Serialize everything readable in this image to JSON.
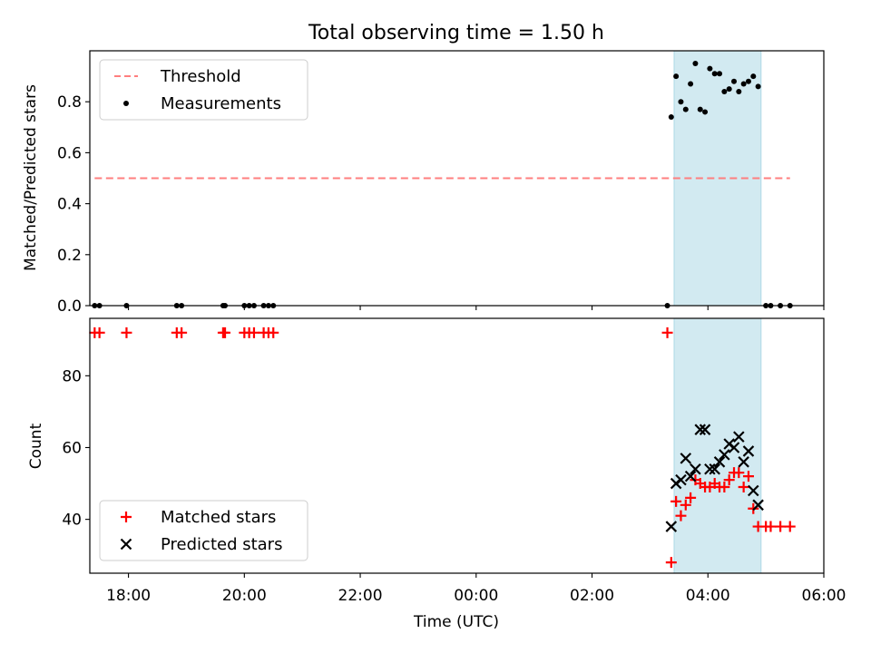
{
  "chart_data": [
    {
      "type": "scatter",
      "title": "Total observing time = 1.50 h",
      "ylabel": "Matched/Predicted stars",
      "ylim": [
        0,
        1.0
      ],
      "yticks": [
        "0.0",
        "0.2",
        "0.4",
        "0.6",
        "0.8"
      ],
      "xlim": [
        "17:20",
        "06:00"
      ],
      "shaded_interval": [
        "03:25",
        "04:55"
      ],
      "shade_color": "#add8e6",
      "legend": {
        "placement": "upper-left",
        "entries": [
          {
            "label": "Threshold",
            "marker": "dashed-line",
            "color": "#ff7f7f"
          },
          {
            "label": "Measurements",
            "marker": "dot",
            "color": "#000000"
          }
        ]
      },
      "series": [
        {
          "name": "Threshold",
          "style": "dashed-line",
          "color": "#ff7f7f",
          "x": [
            "17:25",
            "05:25"
          ],
          "y": [
            0.5,
            0.5
          ]
        },
        {
          "name": "Measurements",
          "style": "dot",
          "color": "#000000",
          "x": [
            "17:25",
            "17:30",
            "17:58",
            "18:50",
            "18:55",
            "19:38",
            "19:40",
            "20:00",
            "20:05",
            "20:10",
            "20:20",
            "20:25",
            "20:30",
            "03:18",
            "03:22",
            "03:27",
            "03:32",
            "03:37",
            "03:42",
            "03:47",
            "03:52",
            "03:57",
            "04:02",
            "04:07",
            "04:12",
            "04:17",
            "04:22",
            "04:27",
            "04:32",
            "04:37",
            "04:42",
            "04:47",
            "04:52",
            "05:00",
            "05:05",
            "05:15",
            "05:25"
          ],
          "y": [
            0,
            0,
            0,
            0,
            0,
            0,
            0,
            0,
            0,
            0,
            0,
            0,
            0,
            0,
            0.74,
            0.9,
            0.8,
            0.77,
            0.87,
            0.95,
            0.77,
            0.76,
            0.93,
            0.91,
            0.91,
            0.84,
            0.85,
            0.88,
            0.84,
            0.87,
            0.88,
            0.9,
            0.86,
            0,
            0,
            0,
            0
          ]
        }
      ]
    },
    {
      "type": "scatter",
      "title": "",
      "xlabel": "Time (UTC)",
      "ylabel": "Count",
      "ylim": [
        25,
        96
      ],
      "yticks": [
        "40",
        "60",
        "80"
      ],
      "xlim": [
        "17:20",
        "06:00"
      ],
      "xticks": [
        "18:00",
        "20:00",
        "22:00",
        "00:00",
        "02:00",
        "04:00",
        "06:00"
      ],
      "shaded_interval": [
        "03:25",
        "04:55"
      ],
      "shade_color": "#add8e6",
      "legend": {
        "placement": "lower-left",
        "entries": [
          {
            "label": "Matched stars",
            "marker": "plus",
            "color": "#ff0000"
          },
          {
            "label": "Predicted stars",
            "marker": "x",
            "color": "#000000"
          }
        ]
      },
      "series": [
        {
          "name": "Matched stars",
          "style": "plus",
          "color": "#ff0000",
          "x": [
            "17:25",
            "17:30",
            "17:58",
            "18:50",
            "18:55",
            "19:38",
            "19:40",
            "20:00",
            "20:05",
            "20:10",
            "20:20",
            "20:25",
            "20:30",
            "03:18",
            "03:22",
            "03:27",
            "03:32",
            "03:37",
            "03:42",
            "03:47",
            "03:52",
            "03:57",
            "04:02",
            "04:07",
            "04:12",
            "04:17",
            "04:22",
            "04:27",
            "04:32",
            "04:37",
            "04:42",
            "04:47",
            "04:52",
            "05:00",
            "05:05",
            "05:15",
            "05:25"
          ],
          "y": [
            92,
            92,
            92,
            92,
            92,
            92,
            92,
            92,
            92,
            92,
            92,
            92,
            92,
            92,
            28,
            45,
            41,
            44,
            46,
            51,
            50,
            49,
            49,
            50,
            49,
            49,
            51,
            53,
            53,
            49,
            52,
            43,
            38,
            38,
            38,
            38,
            38
          ]
        },
        {
          "name": "Predicted stars",
          "style": "x",
          "color": "#000000",
          "x": [
            "03:22",
            "03:27",
            "03:32",
            "03:37",
            "03:42",
            "03:47",
            "03:52",
            "03:57",
            "04:02",
            "04:07",
            "04:12",
            "04:17",
            "04:22",
            "04:27",
            "04:32",
            "04:37",
            "04:42",
            "04:47",
            "04:52"
          ],
          "y": [
            38,
            50,
            51,
            57,
            52,
            54,
            65,
            65,
            54,
            54,
            56,
            58,
            61,
            60,
            63,
            56,
            59,
            48,
            44
          ]
        }
      ]
    }
  ]
}
